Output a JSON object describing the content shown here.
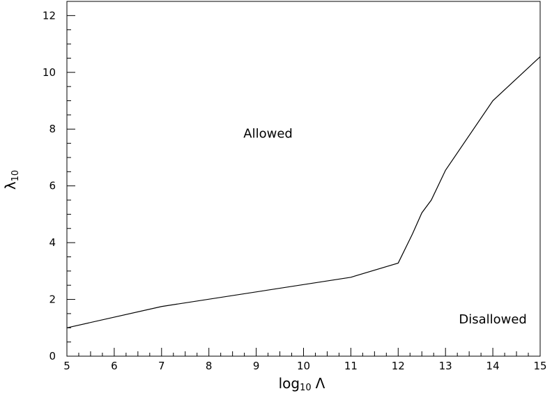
{
  "chart_data": {
    "type": "line",
    "xlabel": {
      "main": "log",
      "sub": "10",
      "suffix": "Λ"
    },
    "ylabel": {
      "main": "λ",
      "sub": "10"
    },
    "xlim": [
      5,
      15
    ],
    "ylim": [
      0,
      12.5
    ],
    "x_ticks": [
      5,
      6,
      7,
      8,
      9,
      10,
      11,
      12,
      13,
      14,
      15
    ],
    "y_ticks": [
      0,
      2,
      4,
      6,
      8,
      10,
      12
    ],
    "grid": false,
    "series": [
      {
        "x": [
          5,
          7,
          11,
          12,
          12.3,
          12.5,
          12.7,
          13,
          14,
          15
        ],
        "y": [
          1.0,
          1.75,
          2.78,
          3.28,
          4.3,
          5.05,
          5.5,
          6.55,
          9.0,
          10.55
        ]
      }
    ],
    "annotations": [
      {
        "text": "Allowed",
        "x": 9.25,
        "y": 7.7
      },
      {
        "text": "Disallowed",
        "x": 14.0,
        "y": 1.15
      }
    ]
  }
}
